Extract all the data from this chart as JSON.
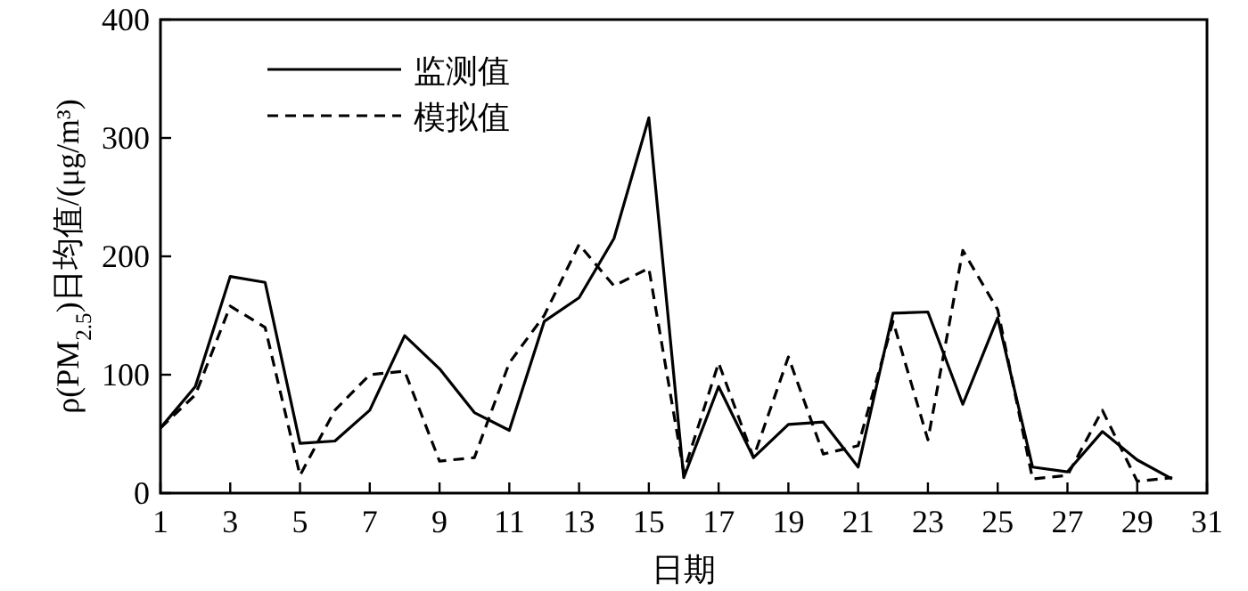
{
  "chart_data": {
    "type": "line",
    "xlabel": "日期",
    "ylabel": "ρ(PM$_{2.5}$)日均值/(μg/m³)",
    "x": [
      1,
      2,
      3,
      4,
      5,
      6,
      7,
      8,
      9,
      10,
      11,
      12,
      13,
      14,
      15,
      16,
      17,
      18,
      19,
      20,
      21,
      22,
      23,
      24,
      25,
      26,
      27,
      28,
      29,
      30
    ],
    "series": [
      {
        "name": "监测值",
        "color": "#000000",
        "line_style": "solid",
        "values": [
          55,
          90,
          183,
          178,
          42,
          44,
          70,
          133,
          105,
          68,
          53,
          145,
          165,
          215,
          317,
          13,
          90,
          30,
          58,
          60,
          22,
          152,
          153,
          75,
          148,
          22,
          18,
          52,
          28,
          12
        ]
      },
      {
        "name": "模拟值",
        "color": "#000000",
        "line_style": "dashed",
        "values": [
          55,
          83,
          158,
          140,
          15,
          70,
          100,
          103,
          27,
          30,
          110,
          150,
          210,
          175,
          190,
          18,
          110,
          30,
          115,
          33,
          40,
          145,
          45,
          205,
          155,
          12,
          15,
          70,
          10,
          13
        ]
      }
    ],
    "xlim": [
      1,
      31
    ],
    "xticks": [
      1,
      3,
      5,
      7,
      9,
      11,
      13,
      15,
      17,
      19,
      21,
      23,
      25,
      27,
      29,
      31
    ],
    "ylim": [
      0,
      400
    ],
    "yticks": [
      0,
      100,
      200,
      300,
      400
    ],
    "grid": false,
    "legend": "top left",
    "marker": "none"
  }
}
